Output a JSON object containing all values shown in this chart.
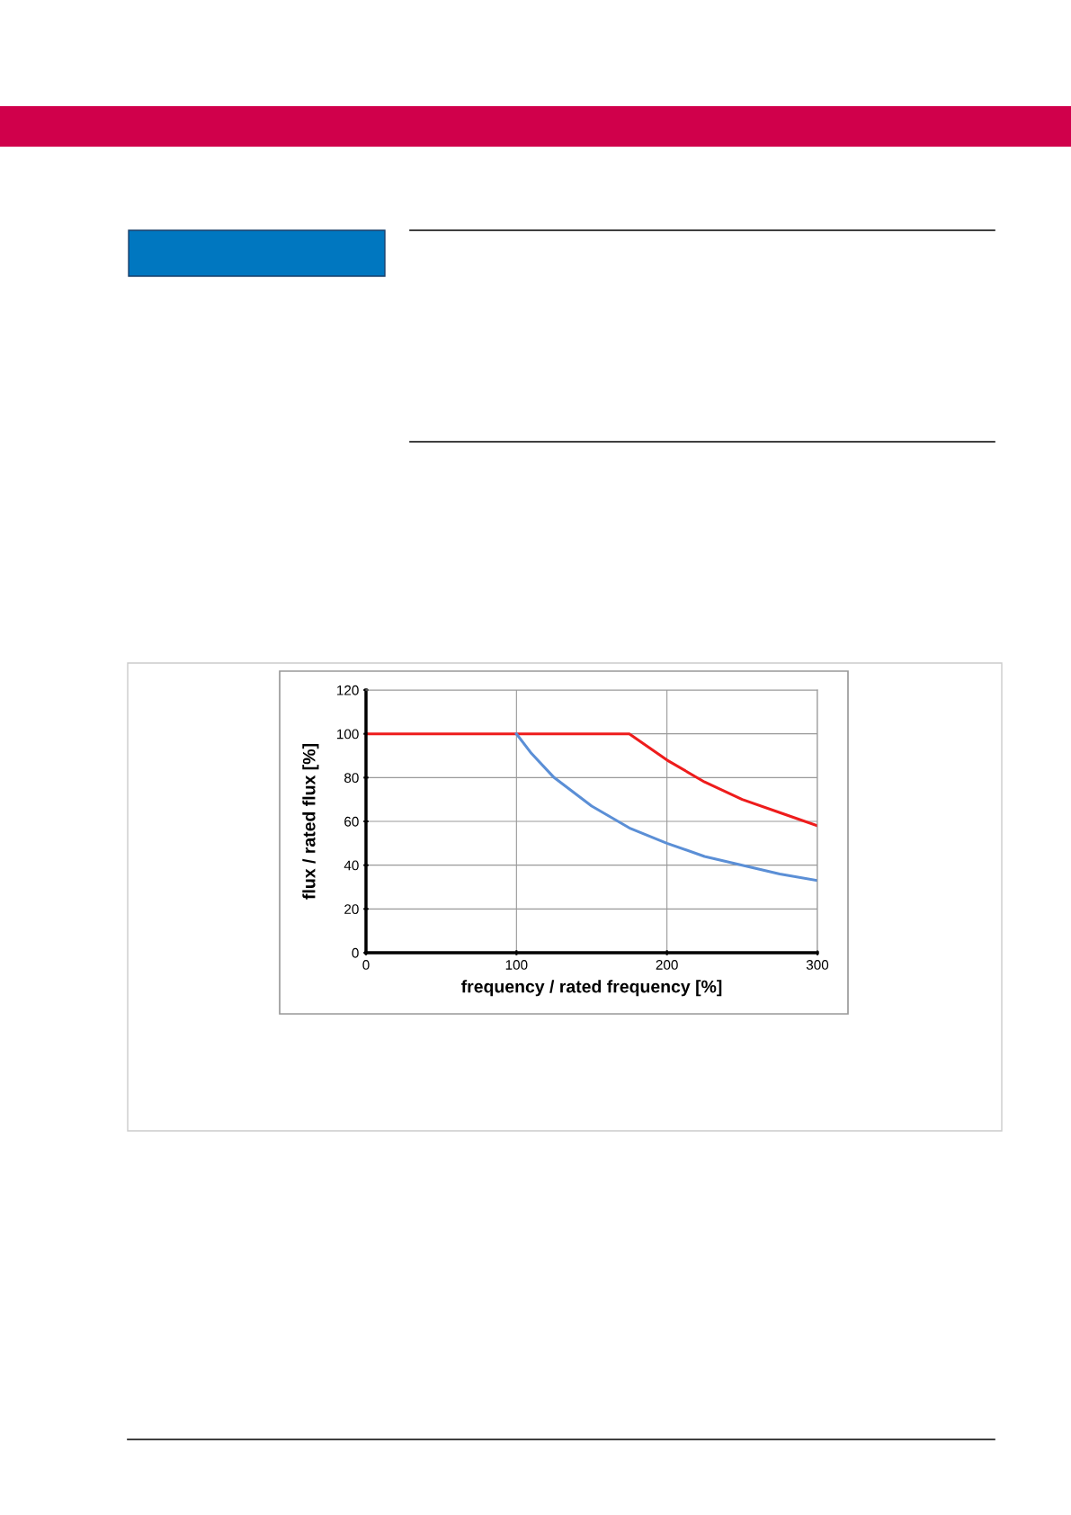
{
  "chart_data": {
    "type": "line",
    "xlabel": "frequency / rated frequency [%]",
    "ylabel": "flux / rated flux [%]",
    "xlim": [
      0,
      300
    ],
    "xticks": [
      0,
      100,
      200,
      300
    ],
    "ylim": [
      0,
      120
    ],
    "yticks": [
      0,
      20,
      40,
      60,
      80,
      100,
      120
    ],
    "grid": true,
    "legend": false,
    "marker": "none",
    "line_style": "solid",
    "series": [
      {
        "color": "#ee1c1c",
        "x": [
          0,
          100,
          175,
          200,
          225,
          250,
          275,
          300
        ],
        "values": [
          100,
          100,
          100,
          88,
          78,
          70,
          64,
          58
        ]
      },
      {
        "color": "#5b8fd6",
        "x": [
          100,
          110,
          125,
          150,
          175,
          200,
          225,
          250,
          275,
          300
        ],
        "values": [
          100,
          91,
          80,
          67,
          57,
          50,
          44,
          40,
          36,
          33
        ]
      }
    ]
  }
}
